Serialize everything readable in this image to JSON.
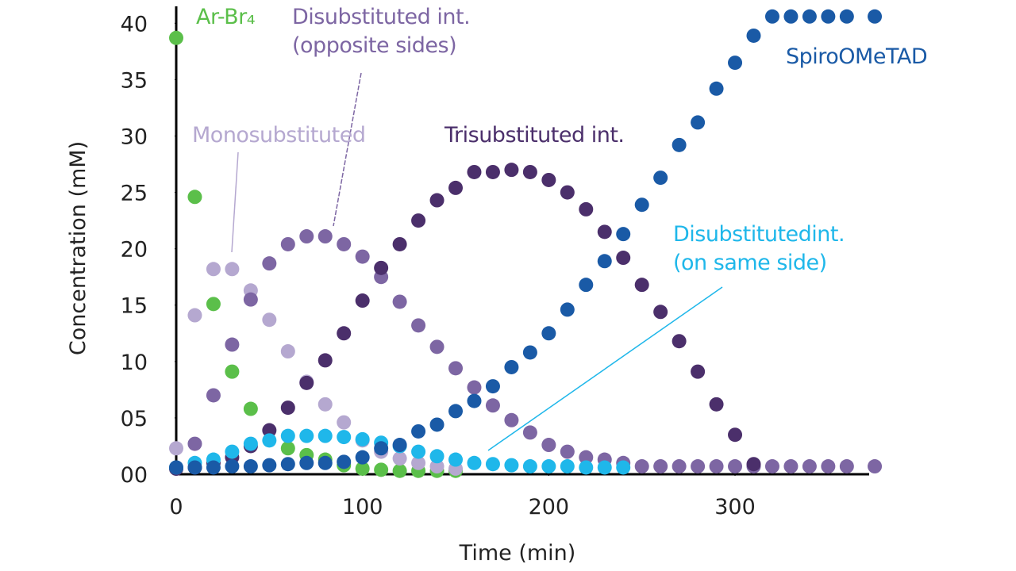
{
  "chart_data": {
    "type": "scatter",
    "x_label": "Time (min)",
    "y_label": "Concentration (mM)",
    "xlim": [
      0,
      372
    ],
    "ylim": [
      0,
      41.5
    ],
    "xticks": [
      0,
      100,
      200,
      300
    ],
    "yticks": [
      {
        "value": 0,
        "label": "00"
      },
      {
        "value": 5,
        "label": "05"
      },
      10,
      15,
      20,
      25,
      30,
      35,
      40
    ],
    "grid": false,
    "series": [
      {
        "name": "Ar-Br₄",
        "color": "#5bbf4a",
        "x": [
          0,
          10,
          20,
          30,
          40,
          60,
          70,
          80,
          90,
          100,
          110,
          120,
          130,
          140,
          150
        ],
        "values": [
          38.7,
          24.6,
          15.1,
          9.1,
          5.8,
          2.3,
          1.7,
          1.3,
          0.8,
          0.5,
          0.4,
          0.3,
          0.3,
          0.3,
          0.3
        ]
      },
      {
        "name": "Monosubstituted",
        "color": "#b5a8d0",
        "x": [
          0,
          10,
          20,
          30,
          40,
          50,
          60,
          70,
          80,
          90,
          100,
          110,
          120,
          130,
          140,
          150
        ],
        "values": [
          2.3,
          14.1,
          18.2,
          18.2,
          16.3,
          13.7,
          10.9,
          8.2,
          6.2,
          4.6,
          3.0,
          2.0,
          1.4,
          1.0,
          0.7,
          0.5
        ]
      },
      {
        "name": "Disubstituted int.\n(opposite sides)",
        "color": "#7d66a3",
        "x": [
          0,
          10,
          20,
          30,
          40,
          50,
          60,
          70,
          80,
          90,
          100,
          110,
          120,
          130,
          140,
          150,
          160,
          170,
          180,
          190,
          200,
          210,
          220,
          230,
          240,
          250,
          260,
          270,
          280,
          290,
          300,
          310,
          320,
          330,
          340,
          350,
          360,
          375
        ],
        "values": [
          0.5,
          2.7,
          7.0,
          11.5,
          15.5,
          18.7,
          20.4,
          21.1,
          21.1,
          20.4,
          19.3,
          17.5,
          15.3,
          13.2,
          11.3,
          9.4,
          7.7,
          6.1,
          4.8,
          3.7,
          2.6,
          2.0,
          1.5,
          1.3,
          1.0,
          0.7,
          0.7,
          0.7,
          0.7,
          0.7,
          0.7,
          0.7,
          0.7,
          0.7,
          0.7,
          0.7,
          0.7,
          0.7
        ]
      },
      {
        "name": "Trisubstituted int.",
        "color": "#4b2f6b",
        "x": [
          0,
          10,
          20,
          30,
          40,
          50,
          60,
          70,
          80,
          90,
          100,
          110,
          120,
          130,
          140,
          150,
          160,
          170,
          180,
          190,
          200,
          210,
          220,
          230,
          240,
          250,
          260,
          270,
          280,
          290,
          300,
          310
        ],
        "values": [
          0.5,
          0.6,
          1.0,
          1.5,
          2.5,
          3.9,
          5.9,
          8.1,
          10.1,
          12.5,
          15.4,
          18.3,
          20.4,
          22.5,
          24.3,
          25.4,
          26.8,
          26.8,
          27.0,
          26.8,
          26.1,
          25.0,
          23.5,
          21.5,
          19.2,
          16.8,
          14.4,
          11.8,
          9.1,
          6.2,
          3.5,
          0.9
        ]
      },
      {
        "name": "Disubstitutedint.\n(on same side)",
        "color": "#1fb7ea",
        "x": [
          0,
          10,
          20,
          30,
          40,
          50,
          60,
          70,
          80,
          90,
          100,
          110,
          120,
          130,
          140,
          150,
          160,
          170,
          180,
          190,
          200,
          210,
          220,
          230,
          240
        ],
        "values": [
          0.6,
          1.0,
          1.3,
          2.0,
          2.7,
          3.0,
          3.4,
          3.4,
          3.4,
          3.3,
          3.1,
          2.8,
          2.5,
          2.0,
          1.6,
          1.3,
          1.0,
          0.9,
          0.8,
          0.7,
          0.7,
          0.7,
          0.6,
          0.6,
          0.6
        ]
      },
      {
        "name": "SpiroOMeTAD",
        "color": "#1a5aa6",
        "x": [
          0,
          10,
          20,
          30,
          40,
          50,
          60,
          70,
          80,
          90,
          100,
          110,
          120,
          130,
          140,
          150,
          160,
          170,
          180,
          190,
          200,
          210,
          220,
          230,
          240,
          250,
          260,
          270,
          280,
          290,
          300,
          310,
          320,
          330,
          340,
          350,
          360,
          375
        ],
        "values": [
          0.6,
          0.6,
          0.6,
          0.7,
          0.7,
          0.8,
          0.9,
          1.0,
          1.0,
          1.1,
          1.5,
          2.3,
          2.6,
          3.8,
          4.4,
          5.6,
          6.5,
          7.8,
          9.5,
          10.8,
          12.5,
          14.6,
          16.8,
          18.9,
          21.3,
          23.9,
          26.3,
          29.2,
          31.2,
          34.2,
          36.5,
          38.9,
          40.6,
          40.6,
          40.6,
          40.6,
          40.6,
          40.6
        ]
      }
    ]
  }
}
